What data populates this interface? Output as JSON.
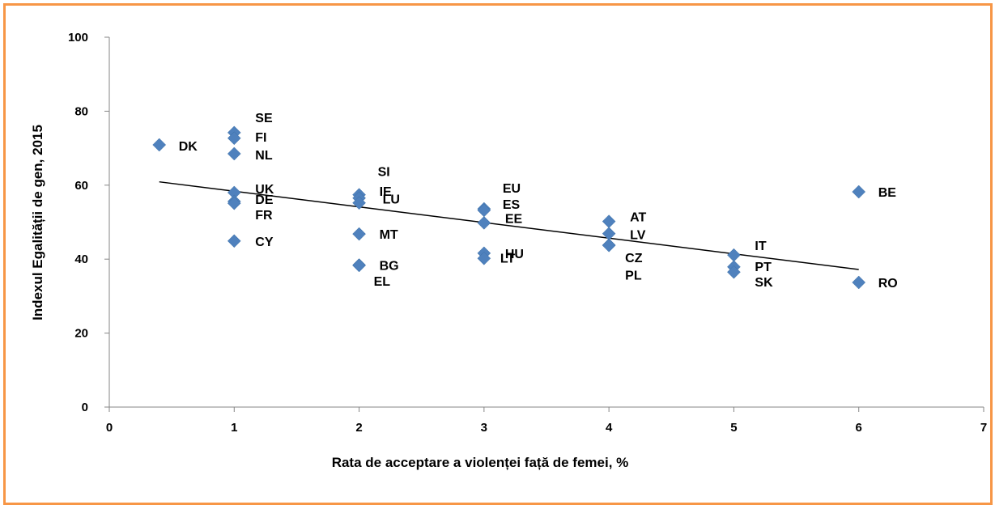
{
  "chart_data": {
    "type": "scatter",
    "title": "",
    "xlabel": "Rata de acceptare a violenței față de femei, %",
    "ylabel": "Indexul Egalității de gen, 2015",
    "xlim": [
      0,
      7
    ],
    "ylim": [
      0,
      100
    ],
    "x_ticks": [
      "0",
      "1",
      "2",
      "3",
      "4",
      "5",
      "6",
      "7"
    ],
    "y_ticks": [
      "0",
      "20",
      "40",
      "60",
      "80",
      "100"
    ],
    "grid": false,
    "legend": "none",
    "marker_color": "#4f81bd",
    "frame_color": "#f79646",
    "points": [
      {
        "label": "DK",
        "x": 0.4,
        "y": 70.9
      },
      {
        "label": "SE",
        "x": 1,
        "y": 74.2
      },
      {
        "label": "FI",
        "x": 1,
        "y": 72.7
      },
      {
        "label": "NL",
        "x": 1,
        "y": 68.5
      },
      {
        "label": "UK",
        "x": 1,
        "y": 58.0
      },
      {
        "label": "DE",
        "x": 1,
        "y": 55.6
      },
      {
        "label": "FR",
        "x": 1,
        "y": 55.1
      },
      {
        "label": "CY",
        "x": 1,
        "y": 44.9
      },
      {
        "label": "SI",
        "x": 2,
        "y": 57.4
      },
      {
        "label": "IE",
        "x": 2,
        "y": 56.5
      },
      {
        "label": "LU",
        "x": 2,
        "y": 55.2
      },
      {
        "label": "MT",
        "x": 2,
        "y": 46.8
      },
      {
        "label": "BG",
        "x": 2,
        "y": 38.4
      },
      {
        "label": "EL",
        "x": 2,
        "y": 38.3
      },
      {
        "label": "EU",
        "x": 3,
        "y": 53.6
      },
      {
        "label": "ES",
        "x": 3,
        "y": 53.2
      },
      {
        "label": "EE",
        "x": 3,
        "y": 49.8
      },
      {
        "label": "HU",
        "x": 3,
        "y": 41.6
      },
      {
        "label": "LT",
        "x": 3,
        "y": 40.2
      },
      {
        "label": "AT",
        "x": 4,
        "y": 50.2
      },
      {
        "label": "LV",
        "x": 4,
        "y": 46.9
      },
      {
        "label": "CZ",
        "x": 4,
        "y": 43.8
      },
      {
        "label": "PL",
        "x": 4,
        "y": 43.7
      },
      {
        "label": "IT",
        "x": 5,
        "y": 41.1
      },
      {
        "label": "PT",
        "x": 5,
        "y": 37.9
      },
      {
        "label": "SK",
        "x": 5,
        "y": 36.5
      },
      {
        "label": "BE",
        "x": 6,
        "y": 58.2
      },
      {
        "label": "RO",
        "x": 6,
        "y": 33.7
      }
    ],
    "trendline": {
      "type": "linear",
      "x": [
        0.4,
        6
      ],
      "y": [
        60.9,
        37.2
      ]
    }
  }
}
